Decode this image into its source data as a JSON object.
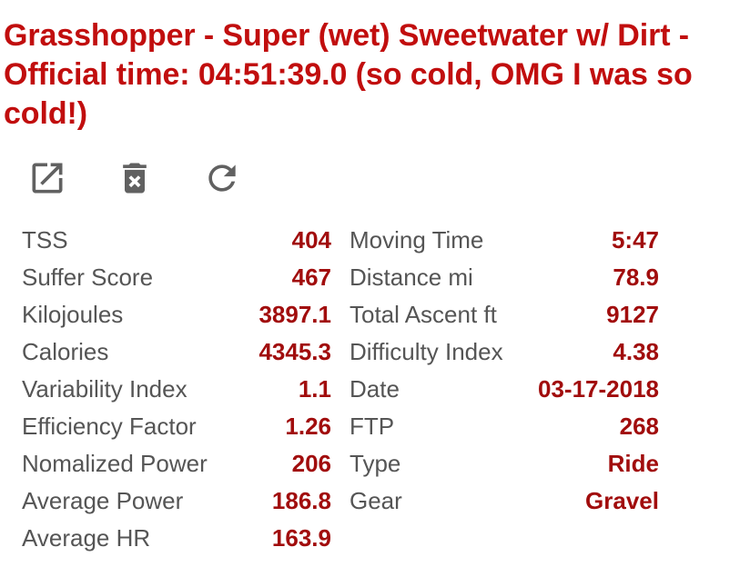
{
  "activity": {
    "title": "Grasshopper - Super (wet) Sweetwater w/ Dirt - Official time: 04:51:39.0 (so cold, OMG I was so cold!)"
  },
  "actions": [
    {
      "icon": "open-in-new-icon"
    },
    {
      "icon": "delete-icon"
    },
    {
      "icon": "refresh-icon"
    }
  ],
  "stats_left": [
    {
      "label": "TSS",
      "value": "404"
    },
    {
      "label": "Suffer Score",
      "value": "467"
    },
    {
      "label": "Kilojoules",
      "value": "3897.1"
    },
    {
      "label": "Calories",
      "value": "4345.3"
    },
    {
      "label": "Variability Index",
      "value": "1.1"
    },
    {
      "label": "Efficiency Factor",
      "value": "1.26"
    },
    {
      "label": "Nomalized Power",
      "value": "206"
    },
    {
      "label": "Average Power",
      "value": "186.8"
    },
    {
      "label": "Average HR",
      "value": "163.9"
    }
  ],
  "stats_right": [
    {
      "label": "Moving Time",
      "value": "5:47"
    },
    {
      "label": "Distance mi",
      "value": "78.9"
    },
    {
      "label": "Total Ascent ft",
      "value": "9127"
    },
    {
      "label": "Difficulty Index",
      "value": "4.38"
    },
    {
      "label": "Date",
      "value": "03-17-2018"
    },
    {
      "label": "FTP",
      "value": "268"
    },
    {
      "label": "Type",
      "value": "Ride"
    },
    {
      "label": "Gear",
      "value": "Gravel"
    }
  ],
  "colors": {
    "title": "#c10e0e",
    "value": "#a10d0d",
    "label": "#555555",
    "icon": "#616161"
  }
}
